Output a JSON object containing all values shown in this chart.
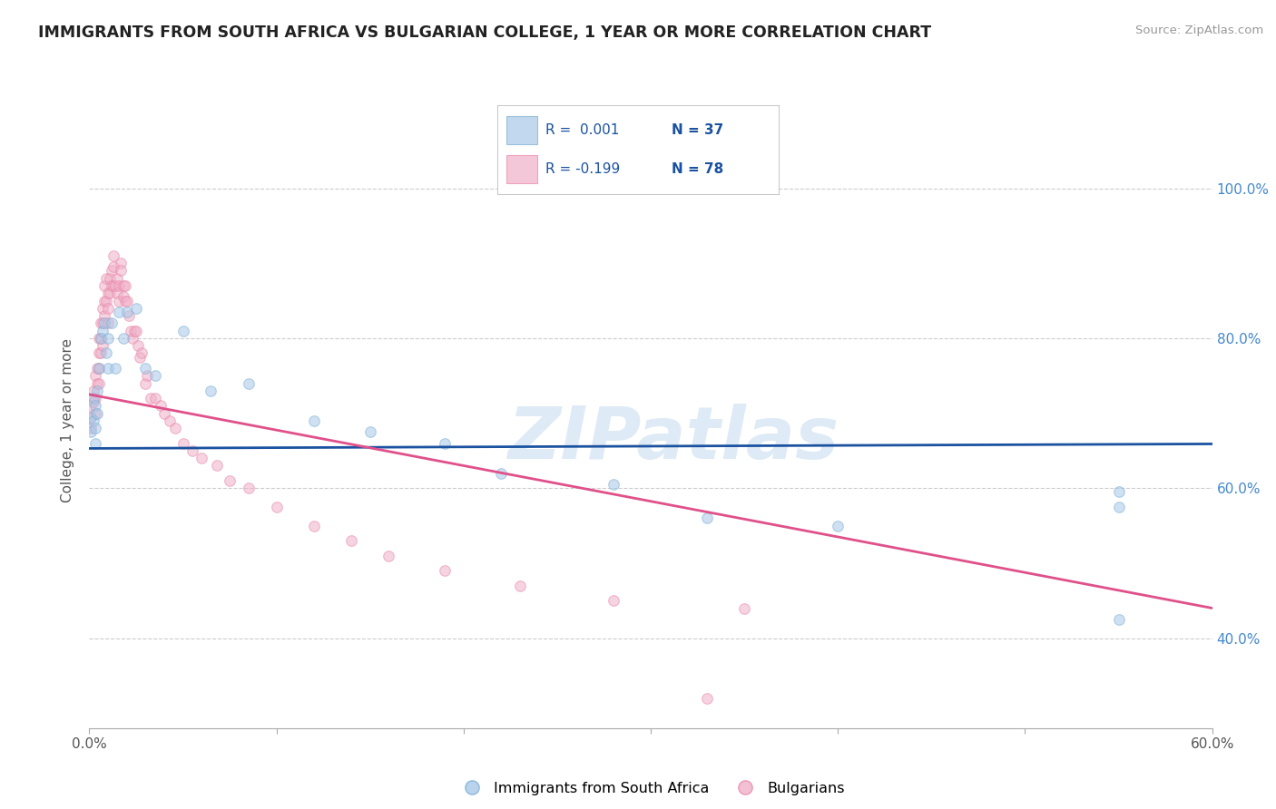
{
  "title": "IMMIGRANTS FROM SOUTH AFRICA VS BULGARIAN COLLEGE, 1 YEAR OR MORE CORRELATION CHART",
  "source": "Source: ZipAtlas.com",
  "ylabel": "College, 1 year or more",
  "legend_labels": [
    "Immigrants from South Africa",
    "Bulgarians"
  ],
  "legend_R": [
    "R =  0.001",
    "R = -0.199"
  ],
  "legend_N": [
    "N = 37",
    "N = 78"
  ],
  "blue_color": "#a8c8e8",
  "pink_color": "#f0b0c8",
  "blue_edge_color": "#7bafd4",
  "pink_edge_color": "#e888a8",
  "blue_line_color": "#1a52a0",
  "pink_line_color": "#e0508a",
  "watermark": "ZIPatlas",
  "xlim": [
    0.0,
    0.6
  ],
  "ylim": [
    0.28,
    1.1
  ],
  "ytick_positions": [
    0.4,
    0.6,
    0.8,
    1.0
  ],
  "yticklabels": [
    "40.0%",
    "60.0%",
    "80.0%",
    "100.0%"
  ],
  "blue_scatter_x": [
    0.001,
    0.001,
    0.002,
    0.002,
    0.003,
    0.003,
    0.003,
    0.004,
    0.004,
    0.005,
    0.006,
    0.007,
    0.008,
    0.009,
    0.01,
    0.01,
    0.012,
    0.014,
    0.016,
    0.018,
    0.02,
    0.025,
    0.03,
    0.035,
    0.05,
    0.065,
    0.085,
    0.12,
    0.15,
    0.19,
    0.22,
    0.28,
    0.33,
    0.4,
    0.55,
    0.55,
    0.55
  ],
  "blue_scatter_y": [
    0.695,
    0.675,
    0.72,
    0.69,
    0.71,
    0.68,
    0.66,
    0.7,
    0.73,
    0.76,
    0.8,
    0.81,
    0.82,
    0.78,
    0.76,
    0.8,
    0.82,
    0.76,
    0.835,
    0.8,
    0.835,
    0.84,
    0.76,
    0.75,
    0.81,
    0.73,
    0.74,
    0.69,
    0.675,
    0.66,
    0.62,
    0.605,
    0.56,
    0.55,
    0.595,
    0.575,
    0.425
  ],
  "pink_scatter_x": [
    0.001,
    0.001,
    0.001,
    0.002,
    0.002,
    0.003,
    0.003,
    0.003,
    0.004,
    0.004,
    0.005,
    0.005,
    0.005,
    0.005,
    0.006,
    0.006,
    0.006,
    0.007,
    0.007,
    0.007,
    0.008,
    0.008,
    0.008,
    0.009,
    0.009,
    0.01,
    0.01,
    0.01,
    0.011,
    0.011,
    0.012,
    0.012,
    0.013,
    0.013,
    0.013,
    0.014,
    0.015,
    0.015,
    0.016,
    0.016,
    0.017,
    0.017,
    0.018,
    0.018,
    0.019,
    0.019,
    0.02,
    0.021,
    0.022,
    0.023,
    0.024,
    0.025,
    0.026,
    0.027,
    0.028,
    0.03,
    0.031,
    0.033,
    0.035,
    0.038,
    0.04,
    0.043,
    0.046,
    0.05,
    0.055,
    0.06,
    0.068,
    0.075,
    0.085,
    0.1,
    0.12,
    0.14,
    0.16,
    0.19,
    0.23,
    0.28,
    0.35,
    0.33
  ],
  "pink_scatter_y": [
    0.71,
    0.695,
    0.68,
    0.73,
    0.715,
    0.75,
    0.72,
    0.7,
    0.76,
    0.74,
    0.8,
    0.78,
    0.76,
    0.74,
    0.82,
    0.8,
    0.78,
    0.84,
    0.82,
    0.79,
    0.87,
    0.85,
    0.83,
    0.85,
    0.88,
    0.86,
    0.84,
    0.82,
    0.88,
    0.86,
    0.89,
    0.87,
    0.91,
    0.895,
    0.87,
    0.87,
    0.88,
    0.86,
    0.87,
    0.85,
    0.9,
    0.89,
    0.87,
    0.855,
    0.87,
    0.85,
    0.85,
    0.83,
    0.81,
    0.8,
    0.81,
    0.81,
    0.79,
    0.775,
    0.78,
    0.74,
    0.75,
    0.72,
    0.72,
    0.71,
    0.7,
    0.69,
    0.68,
    0.66,
    0.65,
    0.64,
    0.63,
    0.61,
    0.6,
    0.575,
    0.55,
    0.53,
    0.51,
    0.49,
    0.47,
    0.45,
    0.44,
    0.32
  ],
  "blue_trend_x": [
    0.0,
    0.6
  ],
  "blue_trend_y": [
    0.653,
    0.659
  ],
  "pink_trend_x": [
    0.0,
    0.6
  ],
  "pink_trend_y": [
    0.725,
    0.44
  ],
  "grid_color": "#cccccc",
  "background_color": "#ffffff",
  "title_color": "#222222",
  "legend_text_color": "#1a52a0",
  "marker_size": 70,
  "marker_alpha": 0.55,
  "legend_color_blue": "#3366cc",
  "legend_color_pink": "#cc3366"
}
